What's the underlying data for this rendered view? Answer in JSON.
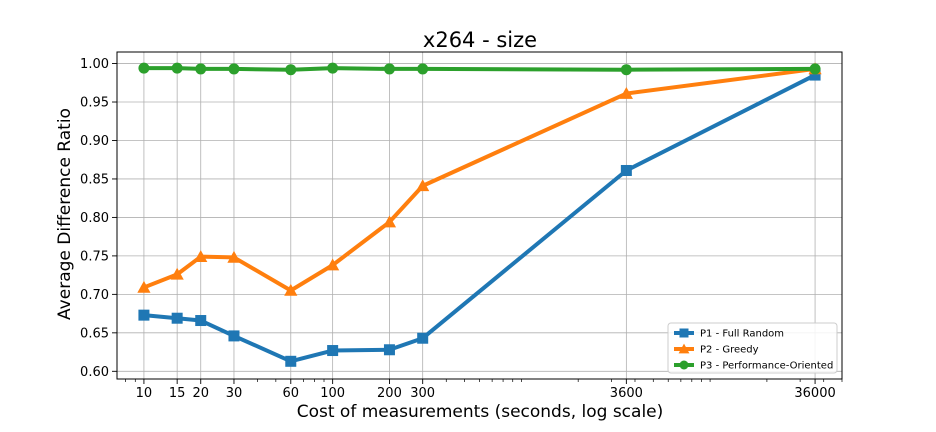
{
  "chart_data": {
    "type": "line",
    "title": "x264 - size",
    "xlabel": "Cost of measurements (seconds, log scale)",
    "ylabel": "Average Difference Ratio",
    "xscale": "log",
    "x": [
      10,
      15,
      20,
      30,
      60,
      100,
      200,
      300,
      3600,
      36000
    ],
    "x_tick_labels": [
      "10",
      "15",
      "20",
      "30",
      "60",
      "100",
      "200",
      "300",
      "3600",
      "36000"
    ],
    "ylim": [
      0.59,
      1.015
    ],
    "y_ticks": [
      0.6,
      0.65,
      0.7,
      0.75,
      0.8,
      0.85,
      0.9,
      0.95,
      1.0
    ],
    "y_tick_labels": [
      "0.60",
      "0.65",
      "0.70",
      "0.75",
      "0.80",
      "0.85",
      "0.90",
      "0.95",
      "1.00"
    ],
    "grid": true,
    "legend_position": "lower-right",
    "series": [
      {
        "name": "P1 - Full Random",
        "color": "#1f77b4",
        "marker": "square",
        "values": [
          0.673,
          0.669,
          0.666,
          0.646,
          0.613,
          0.627,
          0.628,
          0.643,
          0.861,
          0.985
        ]
      },
      {
        "name": "P2 - Greedy",
        "color": "#ff7f0e",
        "marker": "triangle",
        "values": [
          0.709,
          0.726,
          0.749,
          0.748,
          0.705,
          0.738,
          0.794,
          0.841,
          0.961,
          0.993
        ]
      },
      {
        "name": "P3 - Performance-Oriented",
        "color": "#2ca02c",
        "marker": "circle",
        "values": [
          0.994,
          0.994,
          0.993,
          0.993,
          0.992,
          0.994,
          0.993,
          0.993,
          0.992,
          0.993
        ]
      }
    ]
  }
}
